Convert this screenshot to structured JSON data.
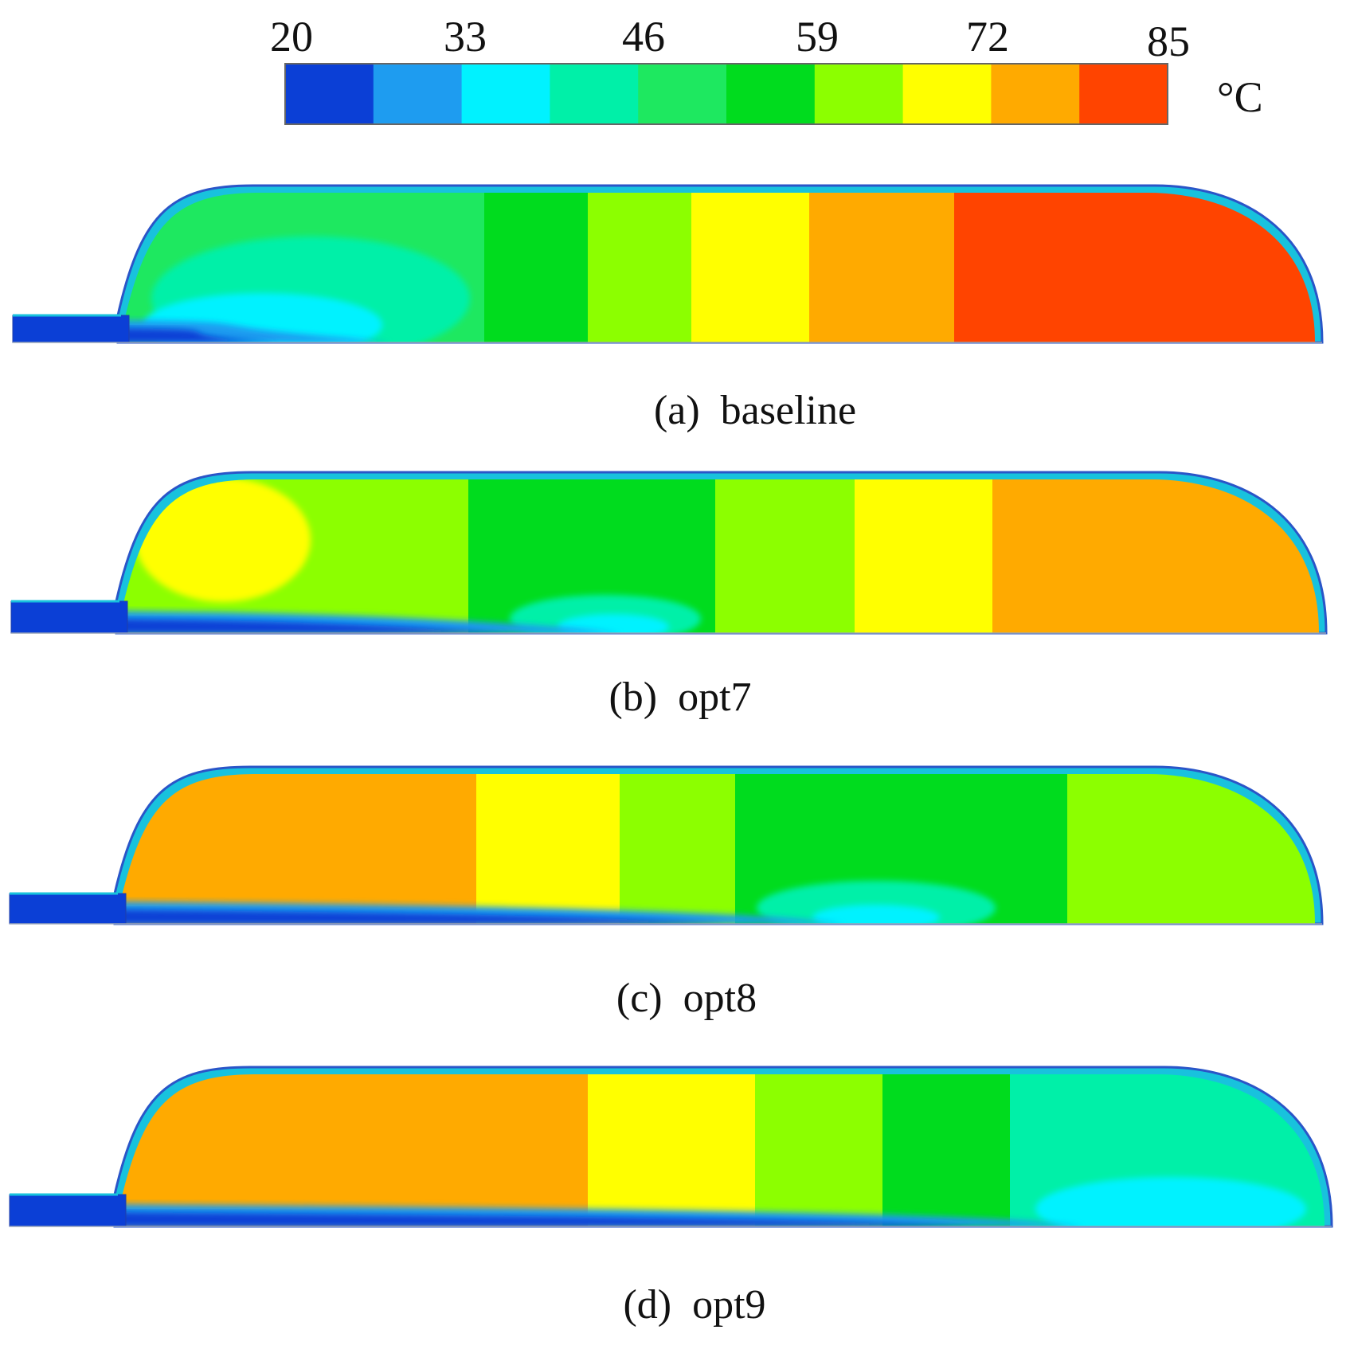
{
  "colorbar": {
    "ticks": [
      "20",
      "33",
      "46",
      "59",
      "72",
      "85"
    ],
    "unit": "°C",
    "colors": [
      "#0b3fd6",
      "#1e9cf0",
      "#00f2ff",
      "#00f0a8",
      "#1ee860",
      "#00dc1e",
      "#8cff00",
      "#ffff00",
      "#ffaa00",
      "#ff4400"
    ]
  },
  "panels": [
    {
      "caption": "(a)  baseline",
      "bands": [
        {
          "value": 46,
          "color": "#1ee860"
        },
        {
          "value": 59,
          "color": "#00dc1e"
        },
        {
          "value": 59,
          "color": "#8cff00"
        },
        {
          "value": 72,
          "color": "#ffff00"
        },
        {
          "value": 72,
          "color": "#ffaa00"
        },
        {
          "value": 85,
          "color": "#ff4400"
        }
      ]
    },
    {
      "caption": "(b)  opt7",
      "bands": [
        {
          "value": 59,
          "color": "#8cff00"
        },
        {
          "value": 59,
          "color": "#00dc1e"
        },
        {
          "value": 59,
          "color": "#8cff00"
        },
        {
          "value": 72,
          "color": "#ffff00"
        },
        {
          "value": 72,
          "color": "#ffaa00"
        }
      ]
    },
    {
      "caption": "(c)  opt8",
      "bands": [
        {
          "value": 72,
          "color": "#ffaa00"
        },
        {
          "value": 72,
          "color": "#ffff00"
        },
        {
          "value": 59,
          "color": "#8cff00"
        },
        {
          "value": 59,
          "color": "#00dc1e"
        },
        {
          "value": 59,
          "color": "#8cff00"
        }
      ]
    },
    {
      "caption": "(d)  opt9",
      "bands": [
        {
          "value": 72,
          "color": "#ffaa00"
        },
        {
          "value": 72,
          "color": "#ffff00"
        },
        {
          "value": 59,
          "color": "#8cff00"
        },
        {
          "value": 59,
          "color": "#00dc1e"
        },
        {
          "value": 46,
          "color": "#00f0a8"
        }
      ]
    }
  ]
}
